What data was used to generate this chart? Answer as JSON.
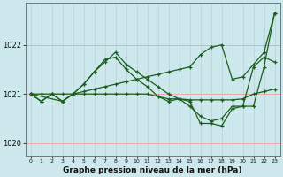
{
  "title": "Graphe pression niveau de la mer (hPa)",
  "background_color": "#cce8ec",
  "grid_color_v": "#b8d8dc",
  "grid_color_h": "#f0a0a0",
  "line_color": "#1a5e1a",
  "xlim": [
    -0.5,
    23.5
  ],
  "ylim": [
    1019.75,
    1022.85
  ],
  "yticks": [
    1020,
    1021,
    1022
  ],
  "xticks": [
    0,
    1,
    2,
    3,
    4,
    5,
    6,
    7,
    8,
    9,
    10,
    11,
    12,
    13,
    14,
    15,
    16,
    17,
    18,
    19,
    20,
    21,
    22,
    23
  ],
  "series": [
    {
      "x": [
        0,
        1,
        2,
        3,
        4,
        5,
        6,
        7,
        8,
        9,
        10,
        11,
        12,
        13,
        14,
        15,
        16,
        17,
        18,
        19,
        20,
        21,
        22,
        23
      ],
      "y": [
        1021.0,
        1021.0,
        1021.0,
        1021.0,
        1021.0,
        1021.05,
        1021.1,
        1021.15,
        1021.2,
        1021.25,
        1021.3,
        1021.35,
        1021.4,
        1021.45,
        1021.5,
        1021.55,
        1021.8,
        1021.95,
        1022.0,
        1021.3,
        1021.35,
        1021.6,
        1021.85,
        1022.65
      ]
    },
    {
      "x": [
        0,
        1,
        2,
        3,
        4,
        5,
        6,
        7,
        8,
        9,
        10,
        11,
        12,
        13,
        14,
        15,
        16,
        17,
        18,
        19,
        20,
        21,
        22,
        23
      ],
      "y": [
        1021.0,
        1020.85,
        1021.0,
        1020.85,
        1021.0,
        1021.2,
        1021.45,
        1021.65,
        1021.85,
        1021.6,
        1021.45,
        1021.3,
        1021.15,
        1021.0,
        1020.9,
        1020.75,
        1020.55,
        1020.45,
        1020.5,
        1020.75,
        1020.75,
        1021.55,
        1021.75,
        1021.65
      ]
    },
    {
      "x": [
        0,
        3,
        4,
        5,
        6,
        7,
        8,
        9,
        10,
        11,
        12,
        13,
        14,
        15,
        16,
        17,
        18,
        19,
        20,
        21,
        22,
        23
      ],
      "y": [
        1021.0,
        1020.85,
        1021.0,
        1021.2,
        1021.45,
        1021.7,
        1021.75,
        1021.5,
        1021.3,
        1021.15,
        1020.95,
        1020.85,
        1020.9,
        1020.85,
        1020.4,
        1020.4,
        1020.35,
        1020.7,
        1020.75,
        1020.75,
        1021.55,
        1022.65
      ]
    },
    {
      "x": [
        0,
        1,
        2,
        3,
        4,
        5,
        6,
        7,
        8,
        9,
        10,
        11,
        12,
        13,
        14,
        15,
        16,
        17,
        18,
        19,
        20,
        21,
        22,
        23
      ],
      "y": [
        1021.0,
        1020.85,
        1021.0,
        1020.85,
        1021.0,
        1021.0,
        1021.0,
        1021.0,
        1021.0,
        1021.0,
        1021.0,
        1021.0,
        1020.95,
        1020.9,
        1020.9,
        1020.88,
        1020.88,
        1020.88,
        1020.88,
        1020.88,
        1020.9,
        1021.0,
        1021.05,
        1021.1
      ]
    }
  ]
}
